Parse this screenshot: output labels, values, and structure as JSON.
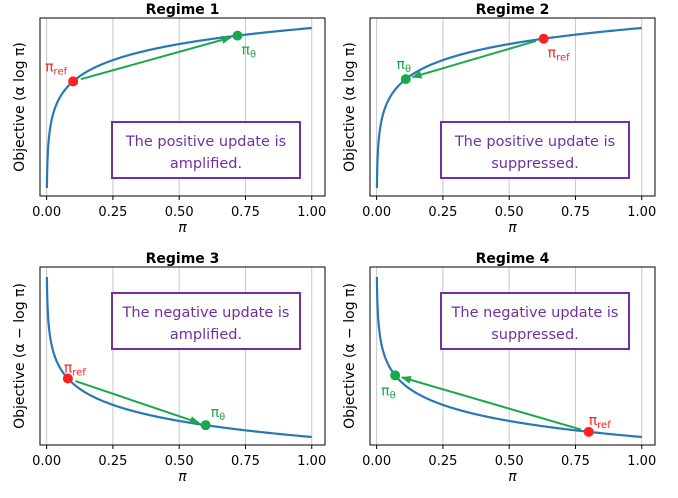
{
  "colors": {
    "curve": "#2878b5",
    "ref_marker": "#ff2020",
    "theta_marker": "#19a84a",
    "arrow": "#19a84a",
    "box_border": "#7030a0",
    "box_text": "#7030a0",
    "grid": "#c8c8c8"
  },
  "chart_data": [
    {
      "type": "line",
      "title": "Regime 1",
      "xlabel": "π",
      "ylabel": "Objective (α log π)",
      "function": "log",
      "xlim": [
        0,
        1
      ],
      "xticks": [
        "0.00",
        "0.25",
        "0.50",
        "0.75",
        "1.00"
      ],
      "grid": "vertical",
      "ref": {
        "label": "π",
        "sub": "ref",
        "x": 0.1
      },
      "theta": {
        "label": "π",
        "sub": "θ",
        "x": 0.72
      },
      "arrow": "ref-to-theta",
      "box_lines": [
        "The positive update is",
        "amplified."
      ]
    },
    {
      "type": "line",
      "title": "Regime 2",
      "xlabel": "π",
      "ylabel": "Objective (α log π)",
      "function": "log",
      "xlim": [
        0,
        1
      ],
      "xticks": [
        "0.00",
        "0.25",
        "0.50",
        "0.75",
        "1.00"
      ],
      "grid": "vertical",
      "ref": {
        "label": "π",
        "sub": "ref",
        "x": 0.63
      },
      "theta": {
        "label": "π",
        "sub": "θ",
        "x": 0.11
      },
      "arrow": "ref-to-theta",
      "box_lines": [
        "The positive update is",
        "suppressed."
      ]
    },
    {
      "type": "line",
      "title": "Regime 3",
      "xlabel": "π",
      "ylabel": "Objective (α − log π)",
      "function": "neglog",
      "xlim": [
        0,
        1
      ],
      "xticks": [
        "0.00",
        "0.25",
        "0.50",
        "0.75",
        "1.00"
      ],
      "grid": "vertical",
      "ref": {
        "label": "π",
        "sub": "ref",
        "x": 0.08
      },
      "theta": {
        "label": "π",
        "sub": "θ",
        "x": 0.6
      },
      "arrow": "ref-to-theta",
      "box_lines": [
        "The negative update is",
        "amplified."
      ]
    },
    {
      "type": "line",
      "title": "Regime 4",
      "xlabel": "π",
      "ylabel": "Objective (α − log π)",
      "function": "neglog",
      "xlim": [
        0,
        1
      ],
      "xticks": [
        "0.00",
        "0.25",
        "0.50",
        "0.75",
        "1.00"
      ],
      "grid": "vertical",
      "ref": {
        "label": "π",
        "sub": "ref",
        "x": 0.8
      },
      "theta": {
        "label": "π",
        "sub": "θ",
        "x": 0.07
      },
      "arrow": "ref-to-theta",
      "box_lines": [
        "The negative update is",
        "suppressed."
      ]
    }
  ]
}
